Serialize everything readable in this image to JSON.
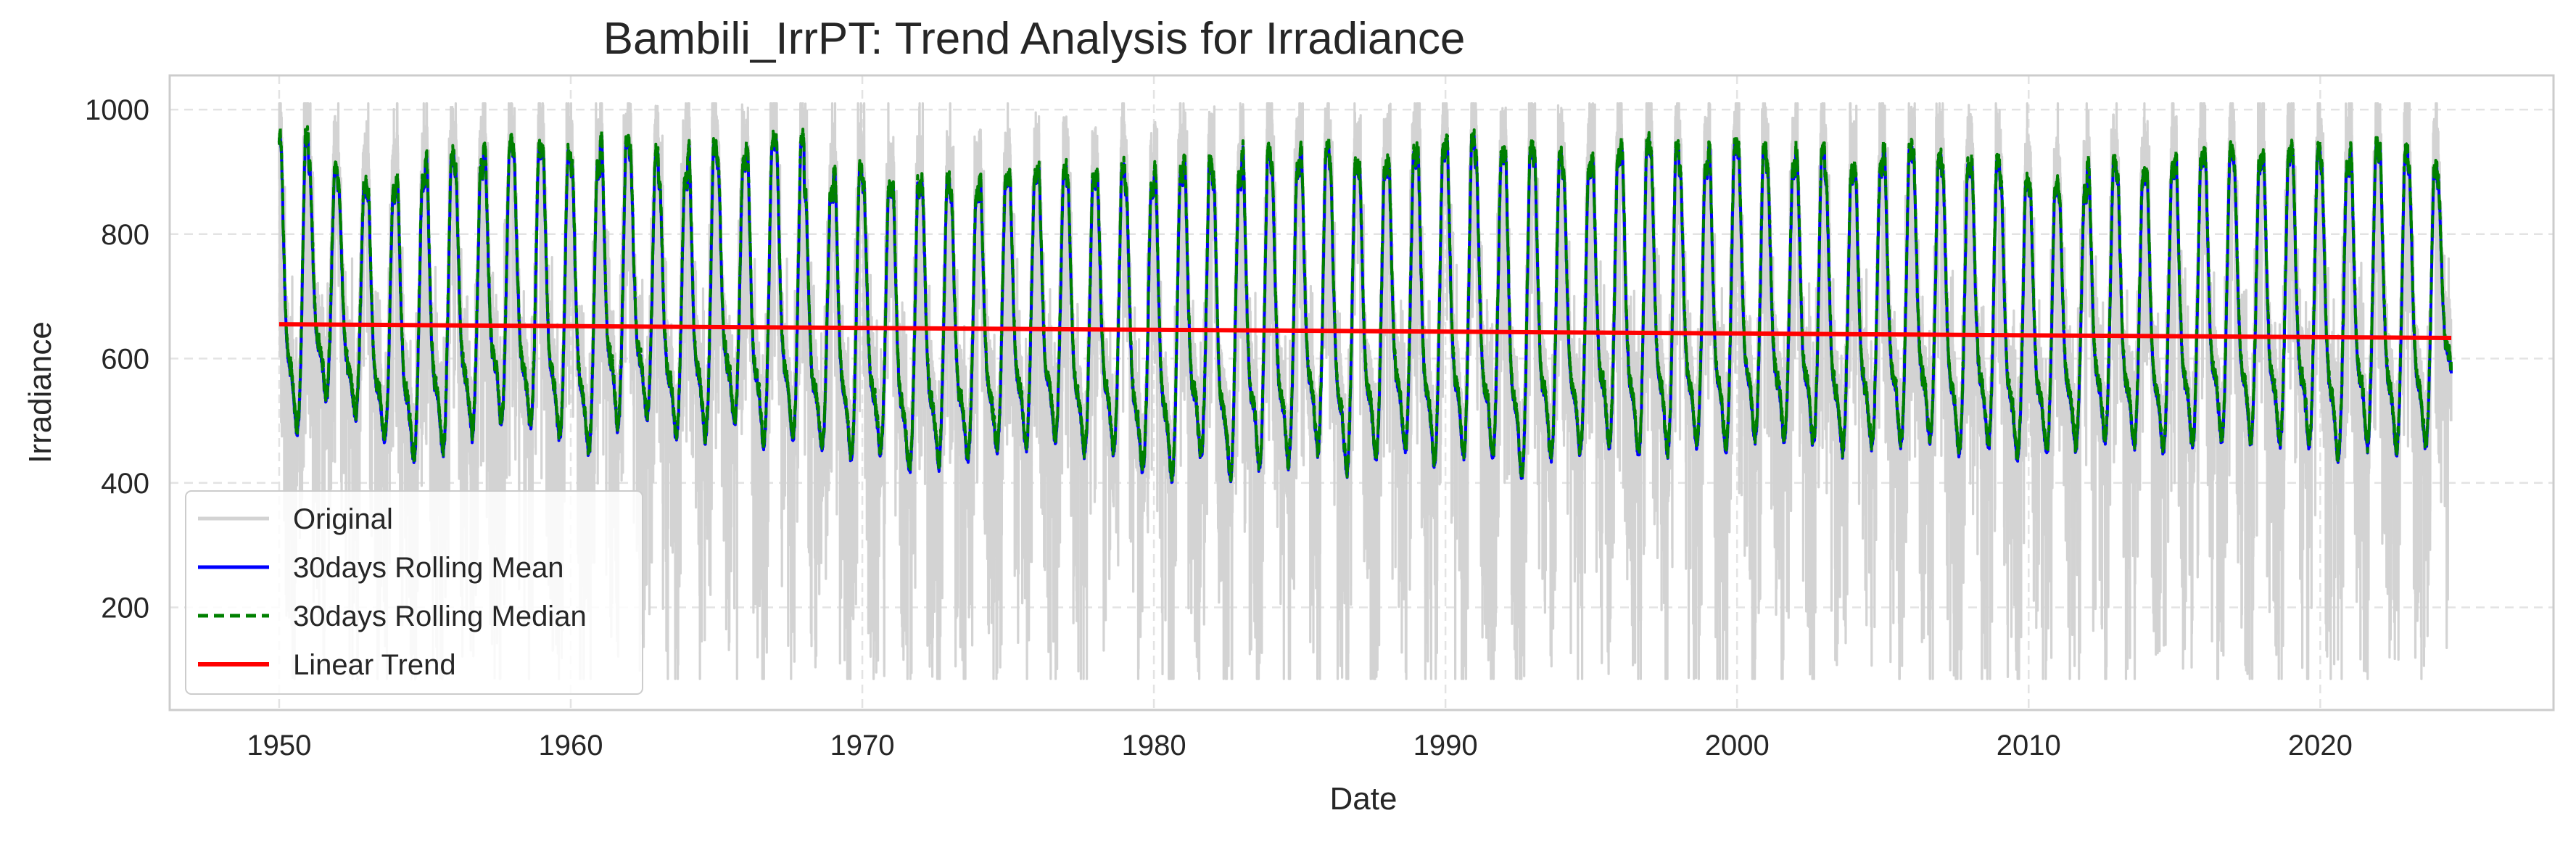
{
  "chart_data": {
    "type": "line",
    "title": "Bambili_IrrPT: Trend Analysis for Irradiance",
    "xlabel": "Date",
    "ylabel": "Irradiance",
    "x_axis_kind": "date",
    "xlim": [
      "1946-04-01",
      "2028-01-01"
    ],
    "ylim": [
      35,
      1055
    ],
    "x_ticks": [
      "1950",
      "1960",
      "1970",
      "1980",
      "1990",
      "2000",
      "2010",
      "2020"
    ],
    "y_ticks": [
      200,
      400,
      600,
      800,
      1000
    ],
    "grid": true,
    "grid_style": "dashed",
    "legend_position": "lower-left",
    "x_range": [
      "1950-01-01",
      "2024-06-30"
    ],
    "series": [
      {
        "name": "Original",
        "color": "#d3d3d3",
        "style": "solid",
        "description_values": {
          "typical_min": 120,
          "typical_max": 980,
          "overall_min": 85,
          "overall_max": 1010
        }
      },
      {
        "name": "30days Rolling Mean",
        "color": "#0000ff",
        "style": "solid",
        "description_values": {
          "typical_min": 430,
          "typical_max": 900
        }
      },
      {
        "name": "30days Rolling Median",
        "color": "#008000",
        "style": "dashed",
        "description_values": {
          "typical_min": 420,
          "typical_max": 930
        }
      },
      {
        "name": "Linear Trend",
        "color": "#ff0000",
        "style": "solid",
        "x": [
          "1950-01-01",
          "2024-06-30"
        ],
        "y": [
          655,
          633
        ]
      }
    ],
    "rolling_profile": {
      "x_years": [
        1950,
        1951,
        1952,
        1953,
        1954,
        1955,
        1956,
        1957,
        1958,
        1959,
        1960,
        1961,
        1962,
        1963,
        1964,
        1965,
        1966,
        1967,
        1968,
        1969,
        1970,
        1971,
        1972,
        1973,
        1974,
        1975,
        1976,
        1977,
        1978,
        1979,
        1980,
        1981,
        1982,
        1983,
        1984,
        1985,
        1986,
        1987,
        1988,
        1989,
        1990,
        1991,
        1992,
        1993,
        1994,
        1995,
        1996,
        1997,
        1998,
        1999,
        2000,
        2001,
        2002,
        2003,
        2004,
        2005,
        2006,
        2007,
        2008,
        2009,
        2010,
        2011,
        2012,
        2013,
        2014,
        2015,
        2016,
        2017,
        2018,
        2019,
        2020,
        2021,
        2022,
        2023,
        2024
      ],
      "annual_peak": [
        950,
        900,
        870,
        860,
        880,
        920,
        900,
        945,
        930,
        925,
        900,
        950,
        920,
        880,
        935,
        910,
        945,
        950,
        860,
        900,
        870,
        870,
        880,
        860,
        880,
        890,
        900,
        880,
        900,
        870,
        890,
        910,
        880,
        930,
        900,
        935,
        910,
        900,
        920,
        930,
        950,
        920,
        930,
        920,
        900,
        920,
        940,
        930,
        900,
        935,
        930,
        900,
        930,
        890,
        900,
        930,
        920,
        900,
        910,
        880,
        870,
        860,
        910,
        890,
        900,
        920,
        925,
        910,
        920,
        930,
        900,
        930,
        925,
        900,
        880
      ],
      "annual_trough": [
        460,
        520,
        490,
        450,
        420,
        430,
        460,
        480,
        470,
        450,
        430,
        470,
        490,
        460,
        450,
        480,
        440,
        450,
        440,
        420,
        430,
        400,
        410,
        420,
        430,
        440,
        450,
        430,
        430,
        400,
        385,
        420,
        390,
        400,
        410,
        430,
        400,
        420,
        430,
        410,
        420,
        420,
        390,
        420,
        430,
        440,
        420,
        430,
        440,
        430,
        450,
        450,
        440,
        430,
        440,
        440,
        450,
        430,
        440,
        420,
        430,
        440,
        450,
        440,
        430,
        440,
        450,
        450,
        440,
        440,
        420,
        440,
        430,
        440,
        520
      ]
    }
  }
}
